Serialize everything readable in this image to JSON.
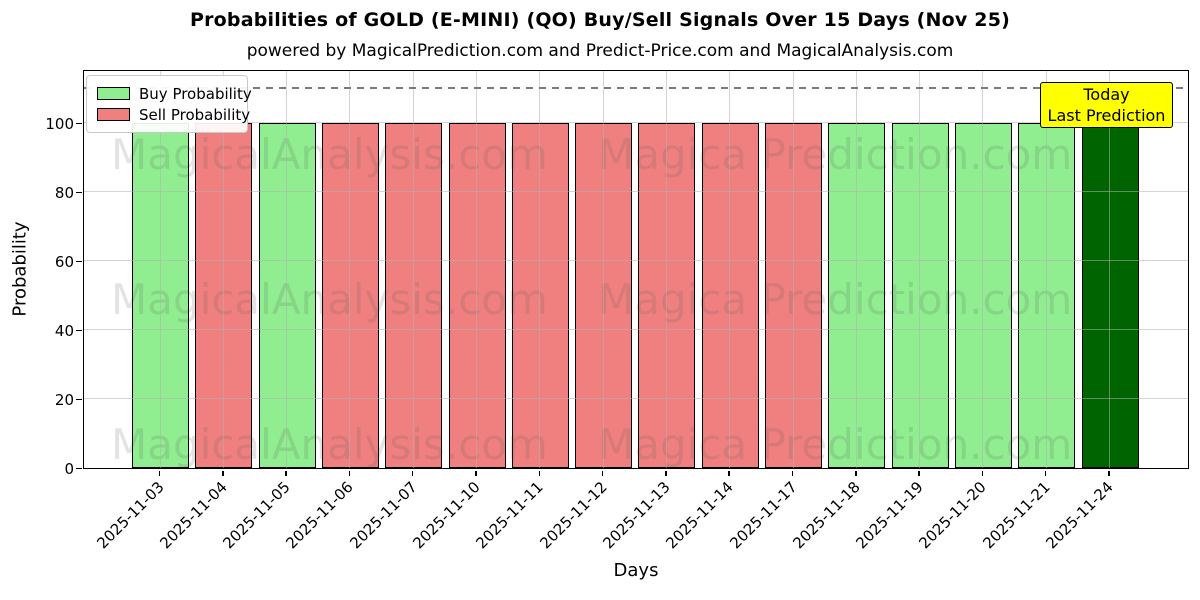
{
  "title": "Probabilities of GOLD (E-MINI) (QO) Buy/Sell Signals Over 15 Days (Nov 25)",
  "subtitle": "powered by MagicalPrediction.com and Predict-Price.com and MagicalAnalysis.com",
  "axes": {
    "x_label": "Days",
    "y_label": "Probability",
    "y_ticks": [
      0,
      20,
      40,
      60,
      80,
      100
    ]
  },
  "legend": {
    "items": [
      {
        "label": "Buy Probability",
        "color": "#90EE90"
      },
      {
        "label": "Sell Probability",
        "color": "#F08080"
      }
    ]
  },
  "annotation": {
    "line1": "Today",
    "line2": "Last Prediction",
    "bg_color": "#ffff00"
  },
  "watermarks": {
    "left": "MagicalAnalysis.com",
    "right": "Magica Prediction.com"
  },
  "chart_data": {
    "type": "bar",
    "title": "Probabilities of GOLD (E-MINI) (QO) Buy/Sell Signals Over 15 Days (Nov 25)",
    "xlabel": "Days",
    "ylabel": "Probability",
    "ylim": [
      0,
      116
    ],
    "grid": true,
    "legend_position": "upper left",
    "threshold_dashed_line_y": 110,
    "categories": [
      "2025-11-03",
      "2025-11-04",
      "2025-11-05",
      "2025-11-06",
      "2025-11-07",
      "2025-11-10",
      "2025-11-11",
      "2025-11-12",
      "2025-11-13",
      "2025-11-14",
      "2025-11-17",
      "2025-11-18",
      "2025-11-19",
      "2025-11-20",
      "2025-11-21",
      "2025-11-24"
    ],
    "values": [
      100,
      100,
      100,
      100,
      100,
      100,
      100,
      100,
      100,
      100,
      100,
      100,
      100,
      100,
      100,
      100
    ],
    "signals": [
      "buy",
      "sell",
      "buy",
      "sell",
      "sell",
      "sell",
      "sell",
      "sell",
      "sell",
      "sell",
      "sell",
      "buy",
      "buy",
      "buy",
      "buy",
      "today"
    ],
    "colors": {
      "buy": "#90EE90",
      "sell": "#F08080",
      "today": "#006400"
    }
  }
}
